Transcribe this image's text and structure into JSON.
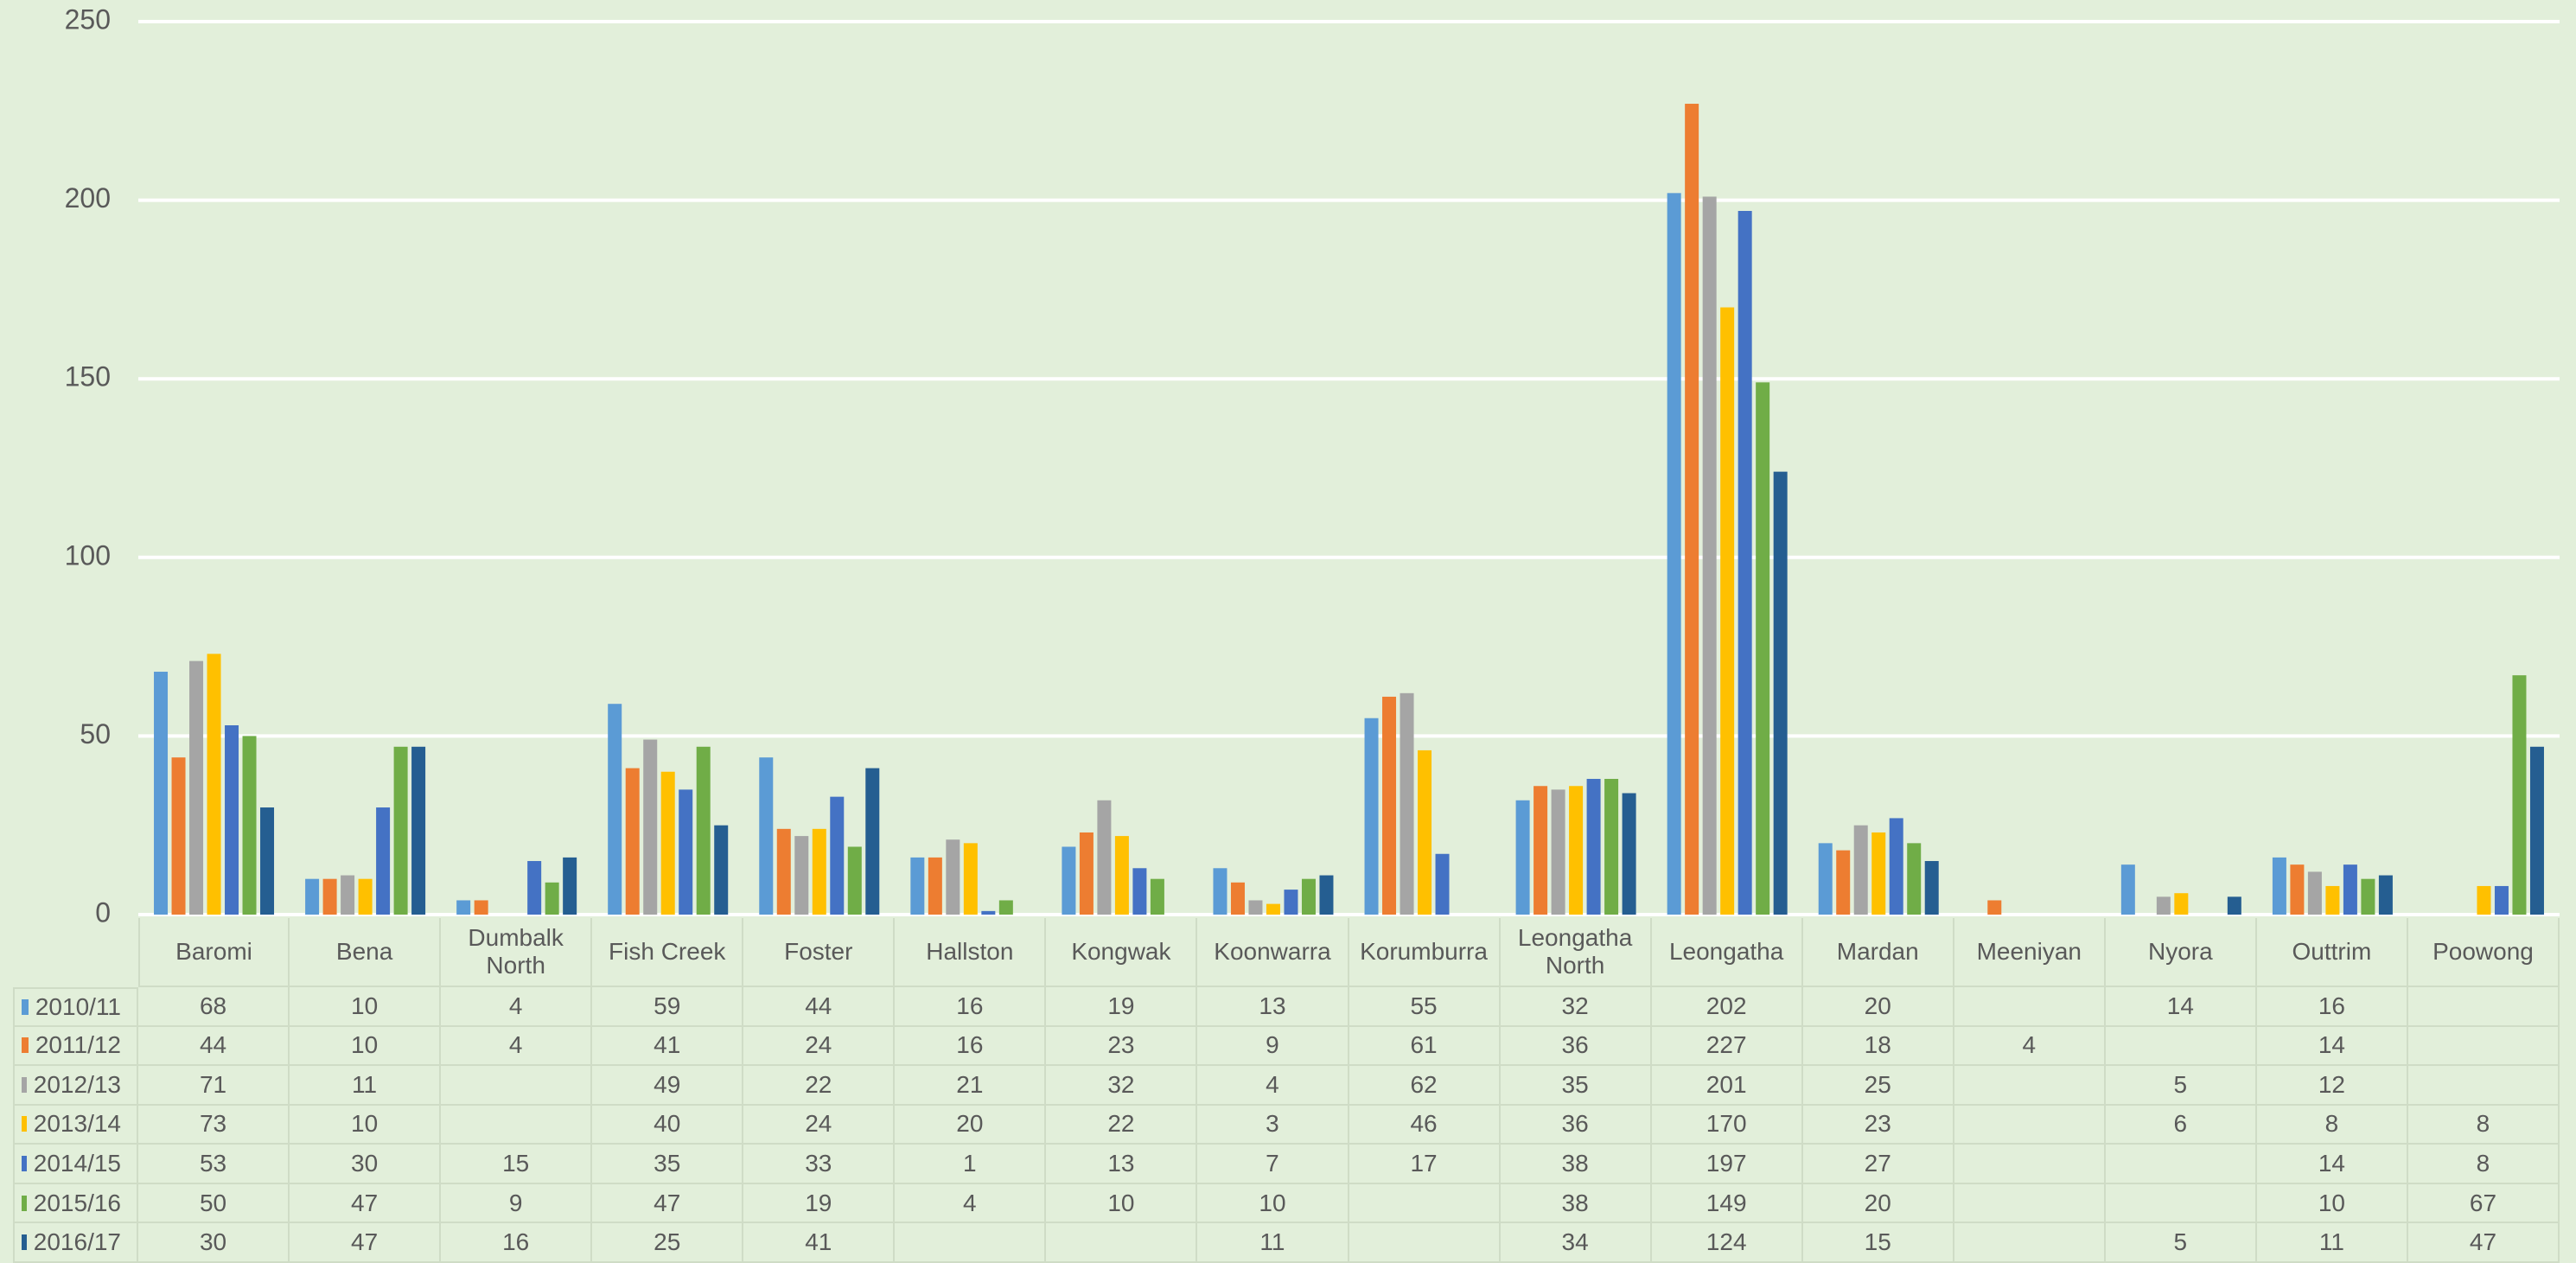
{
  "chart_data": {
    "type": "bar",
    "categories": [
      "Baromi",
      "Bena",
      "Dumbalk North",
      "Fish Creek",
      "Foster",
      "Hallston",
      "Kongwak",
      "Koonwarra",
      "Korumburra",
      "Leongatha North",
      "Leongatha",
      "Mardan",
      "Meeniyan",
      "Nyora",
      "Outtrim",
      "Poowong"
    ],
    "series": [
      {
        "name": "2010/11",
        "color": "#5b9bd5",
        "values": [
          68,
          10,
          4,
          59,
          44,
          16,
          19,
          13,
          55,
          32,
          202,
          20,
          null,
          14,
          16,
          null
        ]
      },
      {
        "name": "2011/12",
        "color": "#ed7d31",
        "values": [
          44,
          10,
          4,
          41,
          24,
          16,
          23,
          9,
          61,
          36,
          227,
          18,
          4,
          null,
          14,
          null
        ]
      },
      {
        "name": "2012/13",
        "color": "#a5a5a5",
        "values": [
          71,
          11,
          null,
          49,
          22,
          21,
          32,
          4,
          62,
          35,
          201,
          25,
          null,
          5,
          12,
          null
        ]
      },
      {
        "name": "2013/14",
        "color": "#ffc000",
        "values": [
          73,
          10,
          null,
          40,
          24,
          20,
          22,
          3,
          46,
          36,
          170,
          23,
          null,
          6,
          8,
          8
        ]
      },
      {
        "name": "2014/15",
        "color": "#4472c4",
        "values": [
          53,
          30,
          15,
          35,
          33,
          1,
          13,
          7,
          17,
          38,
          197,
          27,
          null,
          null,
          14,
          8
        ]
      },
      {
        "name": "2015/16",
        "color": "#70ad47",
        "values": [
          50,
          47,
          9,
          47,
          19,
          4,
          10,
          10,
          null,
          38,
          149,
          20,
          null,
          null,
          10,
          67
        ]
      },
      {
        "name": "2016/17",
        "color": "#255e91",
        "values": [
          30,
          47,
          16,
          25,
          41,
          null,
          null,
          11,
          null,
          34,
          124,
          15,
          null,
          5,
          11,
          47
        ]
      }
    ],
    "ylim": [
      0,
      250
    ],
    "yticks": [
      0,
      50,
      100,
      150,
      200,
      250
    ],
    "grid": true
  }
}
